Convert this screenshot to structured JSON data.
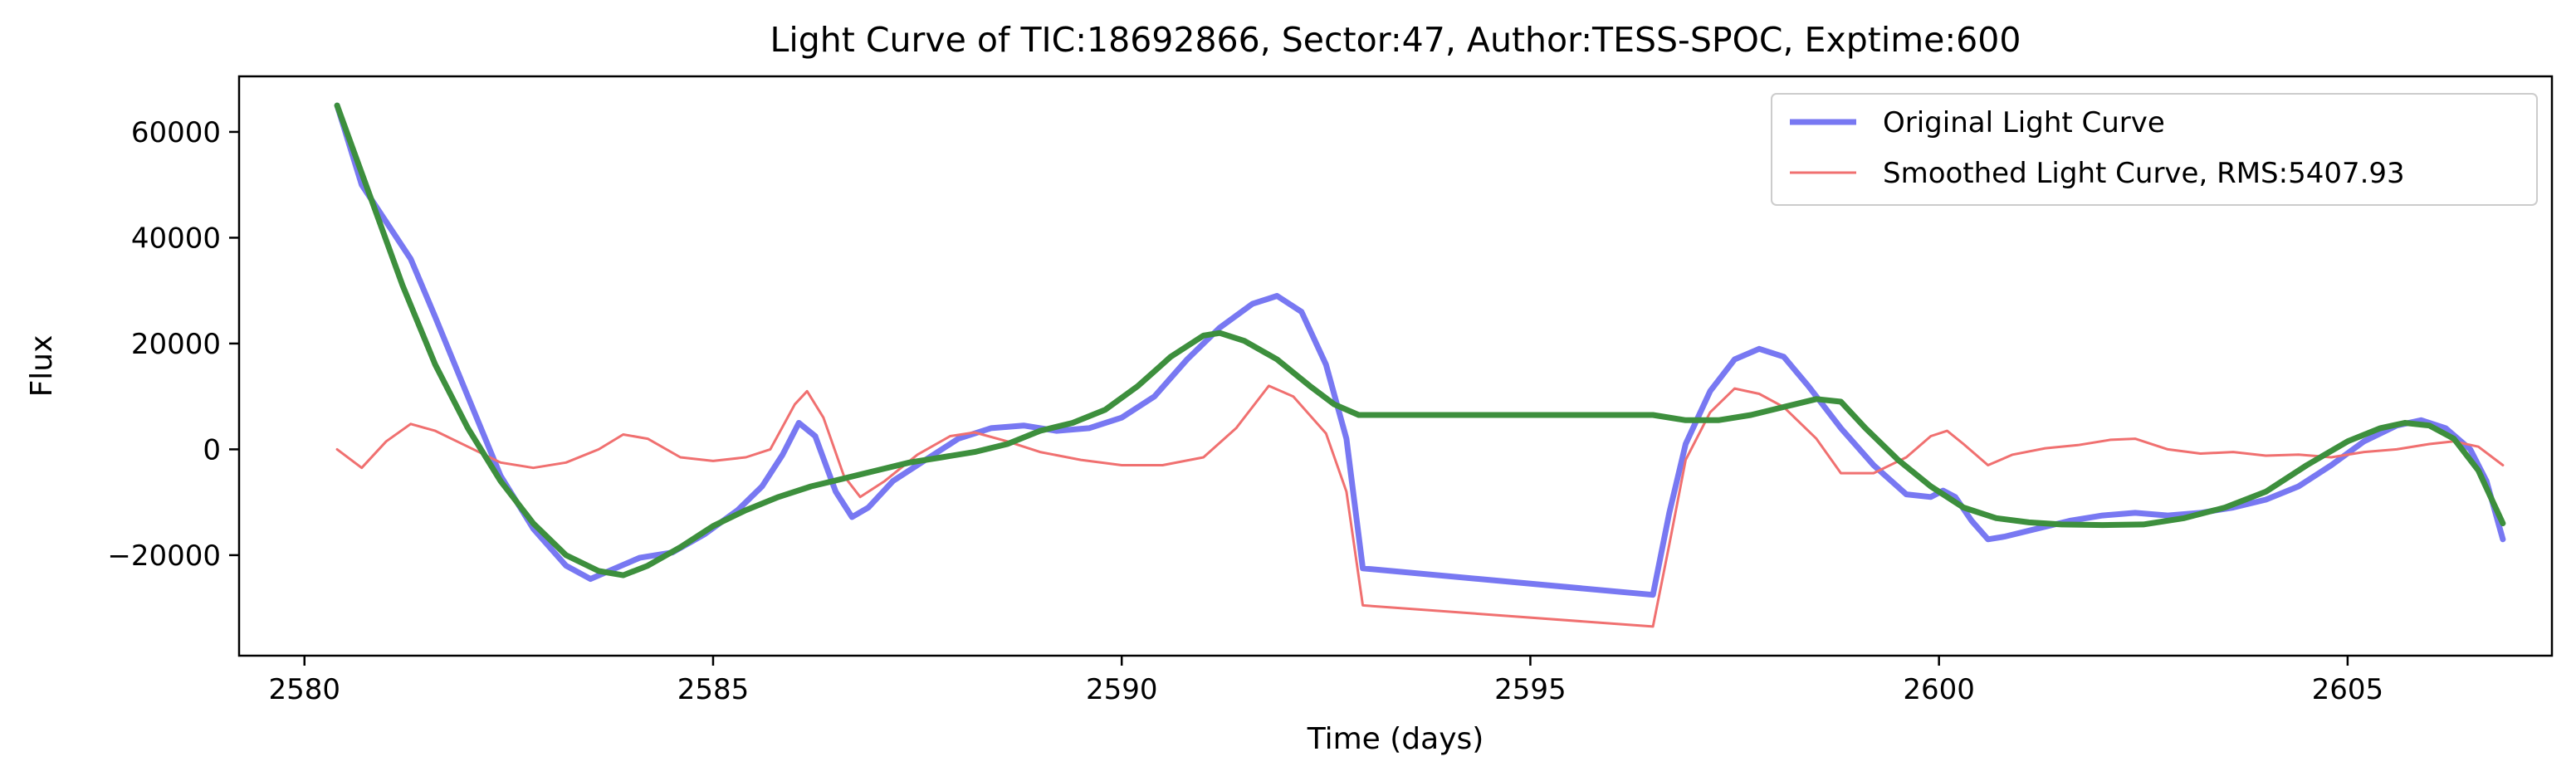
{
  "chart_data": {
    "type": "line",
    "title": "Light Curve of TIC:18692866, Sector:47, Author:TESS-SPOC, Exptime:600",
    "xlabel": "Time (days)",
    "ylabel": "Flux",
    "xlim": [
      2579.2,
      2607.5
    ],
    "ylim": [
      -39000,
      70500
    ],
    "xticks": [
      2580,
      2585,
      2590,
      2595,
      2600,
      2605
    ],
    "yticks": [
      -20000,
      0,
      20000,
      40000,
      60000
    ],
    "grid": false,
    "legend_position": "upper right",
    "legend": [
      "Original Light Curve",
      "Smoothed Light Curve, RMS:5407.93"
    ],
    "series": [
      {
        "name": "Original Light Curve",
        "color": "#7878f2",
        "points": [
          [
            2580.4,
            65000
          ],
          [
            2580.7,
            50000
          ],
          [
            2581,
            43000
          ],
          [
            2581.3,
            36000
          ],
          [
            2581.6,
            25000
          ],
          [
            2582,
            10000
          ],
          [
            2582.4,
            -5000
          ],
          [
            2582.8,
            -15000
          ],
          [
            2583.2,
            -22000
          ],
          [
            2583.5,
            -24500
          ],
          [
            2583.8,
            -22500
          ],
          [
            2584.1,
            -20500
          ],
          [
            2584.5,
            -19500
          ],
          [
            2584.9,
            -16000
          ],
          [
            2585.3,
            -11500
          ],
          [
            2585.6,
            -7000
          ],
          [
            2585.85,
            -1000
          ],
          [
            2586.05,
            5000
          ],
          [
            2586.25,
            2500
          ],
          [
            2586.5,
            -8000
          ],
          [
            2586.7,
            -12800
          ],
          [
            2586.9,
            -11000
          ],
          [
            2587.2,
            -6000
          ],
          [
            2587.6,
            -2000
          ],
          [
            2588,
            2000
          ],
          [
            2588.4,
            4000
          ],
          [
            2588.8,
            4500
          ],
          [
            2589.2,
            3500
          ],
          [
            2589.6,
            4000
          ],
          [
            2590,
            6000
          ],
          [
            2590.4,
            10000
          ],
          [
            2590.8,
            17000
          ],
          [
            2591.2,
            23000
          ],
          [
            2591.6,
            27500
          ],
          [
            2591.9,
            29000
          ],
          [
            2592.2,
            26000
          ],
          [
            2592.5,
            16000
          ],
          [
            2592.75,
            2000
          ],
          [
            2592.95,
            -22500
          ],
          [
            2596.5,
            -27500
          ],
          [
            2596.7,
            -12000
          ],
          [
            2596.9,
            1000
          ],
          [
            2597.2,
            11000
          ],
          [
            2597.5,
            17000
          ],
          [
            2597.8,
            19000
          ],
          [
            2598.1,
            17500
          ],
          [
            2598.4,
            12000
          ],
          [
            2598.8,
            4000
          ],
          [
            2599.2,
            -3000
          ],
          [
            2599.6,
            -8500
          ],
          [
            2599.9,
            -9000
          ],
          [
            2600.05,
            -7800
          ],
          [
            2600.2,
            -9000
          ],
          [
            2600.4,
            -13500
          ],
          [
            2600.6,
            -17000
          ],
          [
            2600.8,
            -16500
          ],
          [
            2601.2,
            -15000
          ],
          [
            2601.6,
            -13500
          ],
          [
            2602,
            -12500
          ],
          [
            2602.4,
            -12000
          ],
          [
            2602.8,
            -12500
          ],
          [
            2603.2,
            -12000
          ],
          [
            2603.6,
            -11000
          ],
          [
            2604,
            -9500
          ],
          [
            2604.4,
            -7000
          ],
          [
            2604.8,
            -3000
          ],
          [
            2605.2,
            1500
          ],
          [
            2605.6,
            4500
          ],
          [
            2605.9,
            5500
          ],
          [
            2606.2,
            4000
          ],
          [
            2606.5,
            0
          ],
          [
            2606.7,
            -6000
          ],
          [
            2606.9,
            -17000
          ]
        ]
      },
      {
        "name": "Smoothed Light Curve, RMS:5407.93",
        "color": "#f07070",
        "points": [
          [
            2580.4,
            0
          ],
          [
            2580.7,
            -3500
          ],
          [
            2581,
            1500
          ],
          [
            2581.3,
            4800
          ],
          [
            2581.6,
            3500
          ],
          [
            2582,
            500
          ],
          [
            2582.4,
            -2500
          ],
          [
            2582.8,
            -3500
          ],
          [
            2583.2,
            -2500
          ],
          [
            2583.6,
            0
          ],
          [
            2583.9,
            2800
          ],
          [
            2584.2,
            2000
          ],
          [
            2584.6,
            -1500
          ],
          [
            2585,
            -2200
          ],
          [
            2585.4,
            -1500
          ],
          [
            2585.7,
            0
          ],
          [
            2586,
            8500
          ],
          [
            2586.15,
            11000
          ],
          [
            2586.35,
            6000
          ],
          [
            2586.6,
            -5000
          ],
          [
            2586.8,
            -9000
          ],
          [
            2587.1,
            -6000
          ],
          [
            2587.5,
            -1000
          ],
          [
            2587.9,
            2500
          ],
          [
            2588.2,
            3200
          ],
          [
            2588.6,
            1500
          ],
          [
            2589,
            -500
          ],
          [
            2589.5,
            -2000
          ],
          [
            2590,
            -3000
          ],
          [
            2590.5,
            -3000
          ],
          [
            2591,
            -1500
          ],
          [
            2591.4,
            4000
          ],
          [
            2591.8,
            12000
          ],
          [
            2592.1,
            10000
          ],
          [
            2592.5,
            3000
          ],
          [
            2592.75,
            -8000
          ],
          [
            2592.95,
            -29500
          ],
          [
            2596.5,
            -33500
          ],
          [
            2596.7,
            -18000
          ],
          [
            2596.9,
            -2000
          ],
          [
            2597.2,
            7000
          ],
          [
            2597.5,
            11500
          ],
          [
            2597.8,
            10500
          ],
          [
            2598.1,
            8000
          ],
          [
            2598.5,
            2000
          ],
          [
            2598.8,
            -4500
          ],
          [
            2599.2,
            -4500
          ],
          [
            2599.6,
            -1500
          ],
          [
            2599.9,
            2500
          ],
          [
            2600.1,
            3500
          ],
          [
            2600.3,
            1000
          ],
          [
            2600.6,
            -3000
          ],
          [
            2600.9,
            -1000
          ],
          [
            2601.3,
            200
          ],
          [
            2601.7,
            800
          ],
          [
            2602.1,
            1800
          ],
          [
            2602.4,
            2000
          ],
          [
            2602.8,
            0
          ],
          [
            2603.2,
            -800
          ],
          [
            2603.6,
            -500
          ],
          [
            2604,
            -1200
          ],
          [
            2604.4,
            -1000
          ],
          [
            2604.8,
            -1500
          ],
          [
            2605.2,
            -500
          ],
          [
            2605.6,
            0
          ],
          [
            2606,
            1000
          ],
          [
            2606.3,
            1500
          ],
          [
            2606.6,
            500
          ],
          [
            2606.9,
            -3000
          ]
        ]
      },
      {
        "name": "",
        "color": "#3d8f3d",
        "points": [
          [
            2580.4,
            65000
          ],
          [
            2580.8,
            48000
          ],
          [
            2581.2,
            31000
          ],
          [
            2581.6,
            16000
          ],
          [
            2582,
            4000
          ],
          [
            2582.4,
            -6000
          ],
          [
            2582.8,
            -14000
          ],
          [
            2583.2,
            -20000
          ],
          [
            2583.6,
            -23000
          ],
          [
            2583.9,
            -23800
          ],
          [
            2584.2,
            -22000
          ],
          [
            2584.6,
            -18500
          ],
          [
            2585,
            -14500
          ],
          [
            2585.4,
            -11500
          ],
          [
            2585.8,
            -9000
          ],
          [
            2586.2,
            -7000
          ],
          [
            2586.6,
            -5500
          ],
          [
            2587,
            -4000
          ],
          [
            2587.4,
            -2500
          ],
          [
            2587.8,
            -1500
          ],
          [
            2588.2,
            -500
          ],
          [
            2588.6,
            1000
          ],
          [
            2589,
            3500
          ],
          [
            2589.4,
            5000
          ],
          [
            2589.8,
            7500
          ],
          [
            2590.2,
            12000
          ],
          [
            2590.6,
            17500
          ],
          [
            2591,
            21500
          ],
          [
            2591.2,
            22000
          ],
          [
            2591.5,
            20500
          ],
          [
            2591.9,
            17000
          ],
          [
            2592.3,
            12000
          ],
          [
            2592.6,
            8500
          ],
          [
            2592.9,
            6500
          ],
          [
            2593.5,
            6500
          ],
          [
            2594.5,
            6500
          ],
          [
            2595.5,
            6500
          ],
          [
            2596.5,
            6500
          ],
          [
            2596.9,
            5500
          ],
          [
            2597.3,
            5500
          ],
          [
            2597.7,
            6500
          ],
          [
            2598.1,
            8000
          ],
          [
            2598.5,
            9500
          ],
          [
            2598.8,
            9000
          ],
          [
            2599.1,
            4000
          ],
          [
            2599.5,
            -2000
          ],
          [
            2599.9,
            -7000
          ],
          [
            2600.3,
            -11000
          ],
          [
            2600.7,
            -13000
          ],
          [
            2601.1,
            -13800
          ],
          [
            2601.5,
            -14200
          ],
          [
            2602,
            -14300
          ],
          [
            2602.5,
            -14200
          ],
          [
            2603,
            -13000
          ],
          [
            2603.5,
            -11000
          ],
          [
            2604,
            -8000
          ],
          [
            2604.5,
            -3000
          ],
          [
            2605,
            1500
          ],
          [
            2605.4,
            4000
          ],
          [
            2605.7,
            5000
          ],
          [
            2606,
            4500
          ],
          [
            2606.3,
            2000
          ],
          [
            2606.6,
            -4000
          ],
          [
            2606.9,
            -14000
          ]
        ]
      }
    ]
  }
}
